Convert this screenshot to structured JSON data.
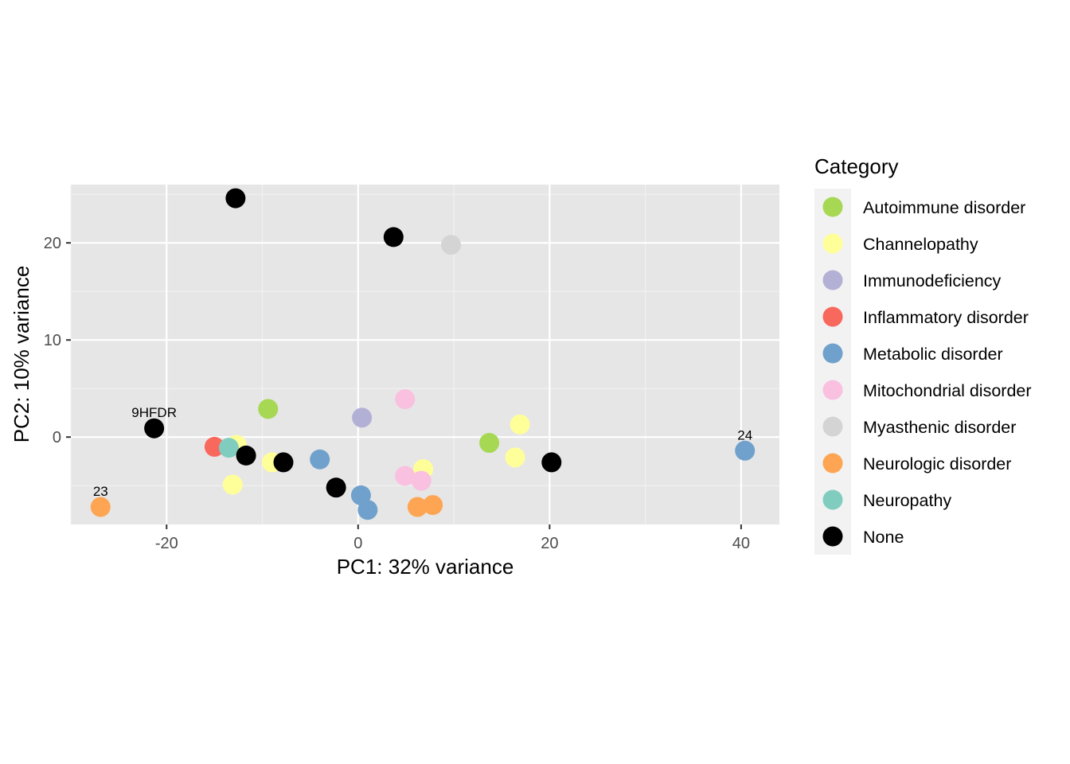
{
  "chart_data": {
    "type": "scatter",
    "title": "",
    "xlabel": "PC1: 32% variance",
    "ylabel": "PC2: 10% variance",
    "xlim": [
      -30,
      44
    ],
    "ylim": [
      -9,
      26
    ],
    "x_ticks": [
      -20,
      0,
      20,
      40
    ],
    "x_tick_labels": [
      "-20",
      "0",
      "20",
      "40"
    ],
    "y_ticks": [
      0,
      10,
      20
    ],
    "y_tick_labels": [
      "0",
      "10",
      "20"
    ],
    "grid": true,
    "legend": {
      "title": "Category",
      "position": "right",
      "entries": [
        {
          "name": "Autoimmune disorder",
          "color": "#a6d854"
        },
        {
          "name": "Channelopathy",
          "color": "#ffff99"
        },
        {
          "name": "Immunodeficiency",
          "color": "#b3b0d6"
        },
        {
          "name": "Inflammatory disorder",
          "color": "#f8685c"
        },
        {
          "name": "Metabolic disorder",
          "color": "#6fa1cc"
        },
        {
          "name": "Mitochondrial disorder",
          "color": "#f9c0df"
        },
        {
          "name": "Myasthenic disorder",
          "color": "#d4d4d4"
        },
        {
          "name": "Neurologic disorder",
          "color": "#fda553"
        },
        {
          "name": "Neuropathy",
          "color": "#80cdbf"
        },
        {
          "name": "None",
          "color": "#000000"
        }
      ]
    },
    "points": [
      {
        "x": 13.7,
        "y": -0.6,
        "category": "Autoimmune disorder"
      },
      {
        "x": -9.4,
        "y": 2.9,
        "category": "Autoimmune disorder"
      },
      {
        "x": -12.7,
        "y": -0.8,
        "category": "Channelopathy"
      },
      {
        "x": -13.1,
        "y": -4.9,
        "category": "Channelopathy"
      },
      {
        "x": -9.0,
        "y": -2.6,
        "category": "Channelopathy"
      },
      {
        "x": 6.8,
        "y": -3.3,
        "category": "Channelopathy"
      },
      {
        "x": 16.9,
        "y": 1.3,
        "category": "Channelopathy"
      },
      {
        "x": 16.4,
        "y": -2.1,
        "category": "Channelopathy"
      },
      {
        "x": 0.4,
        "y": 2.0,
        "category": "Immunodeficiency"
      },
      {
        "x": -15.0,
        "y": -1.0,
        "category": "Inflammatory disorder"
      },
      {
        "x": -4.0,
        "y": -2.3,
        "category": "Metabolic disorder"
      },
      {
        "x": 0.3,
        "y": -6.0,
        "category": "Metabolic disorder"
      },
      {
        "x": 1.0,
        "y": -7.5,
        "category": "Metabolic disorder"
      },
      {
        "x": 40.4,
        "y": -1.4,
        "category": "Metabolic disorder",
        "label": "24"
      },
      {
        "x": 4.9,
        "y": 3.9,
        "category": "Mitochondrial disorder"
      },
      {
        "x": 4.9,
        "y": -4.0,
        "category": "Mitochondrial disorder"
      },
      {
        "x": 6.6,
        "y": -4.5,
        "category": "Mitochondrial disorder"
      },
      {
        "x": 9.7,
        "y": 19.8,
        "category": "Myasthenic disorder"
      },
      {
        "x": -26.9,
        "y": -7.2,
        "category": "Neurologic disorder",
        "label": "23"
      },
      {
        "x": 6.2,
        "y": -7.2,
        "category": "Neurologic disorder"
      },
      {
        "x": 7.8,
        "y": -7.0,
        "category": "Neurologic disorder"
      },
      {
        "x": -13.5,
        "y": -1.1,
        "category": "Neuropathy"
      },
      {
        "x": -12.8,
        "y": 24.6,
        "category": "None"
      },
      {
        "x": 3.7,
        "y": 20.6,
        "category": "None"
      },
      {
        "x": -21.3,
        "y": 0.9,
        "category": "None",
        "label": "9HFDR"
      },
      {
        "x": -11.7,
        "y": -1.9,
        "category": "None"
      },
      {
        "x": -7.8,
        "y": -2.6,
        "category": "None"
      },
      {
        "x": -2.3,
        "y": -5.2,
        "category": "None"
      },
      {
        "x": 20.2,
        "y": -2.6,
        "category": "None"
      }
    ]
  }
}
